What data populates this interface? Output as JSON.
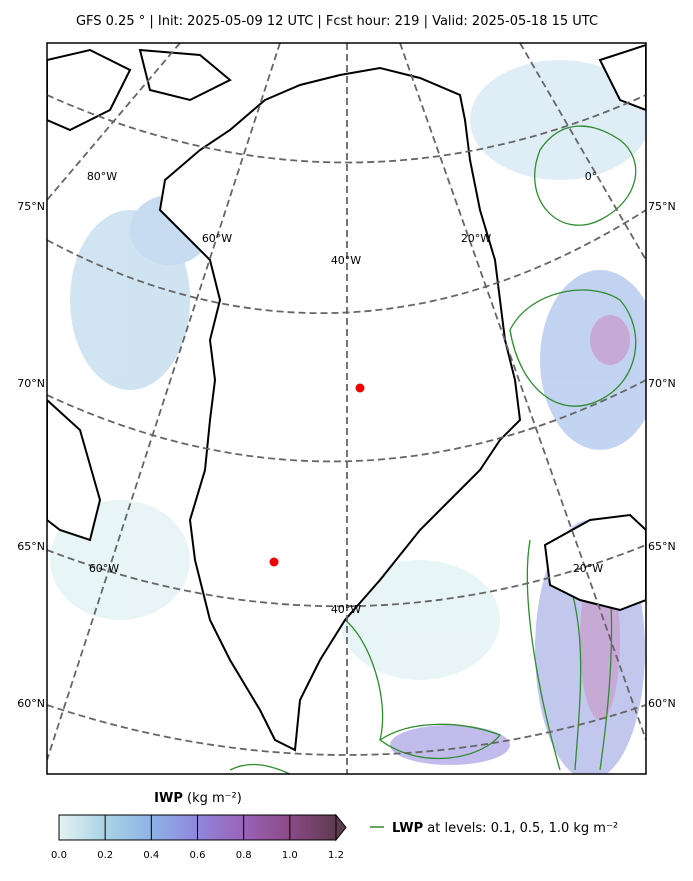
{
  "header": {
    "title": "GFS 0.25 °  |  Init: 2025-05-09 12 UTC  |  Fcst hour: 219  |  Valid: 2025-05-18 15 UTC"
  },
  "map": {
    "lat_labels_left": [
      "75°N",
      "70°N",
      "65°N",
      "60°N"
    ],
    "lat_labels_right": [
      "75°N",
      "70°N",
      "65°N",
      "60°N"
    ],
    "lon_labels": [
      "80°W",
      "0°",
      "60°W",
      "20°W",
      "40°W",
      "60°W",
      "20°W",
      "40°W"
    ]
  },
  "colorbar": {
    "label": "IWP",
    "unit": "(kg m⁻²)",
    "ticks": [
      {
        "value": 0,
        "label": "0.0"
      },
      0.2,
      0.4,
      0.6,
      0.8,
      {
        "value": 1,
        "label": "1.0"
      },
      1.2
    ],
    "colors": [
      "#e4f2f2",
      "#a9d3e6",
      "#8fb3e6",
      "#8f86dc",
      "#9a63b6",
      "#8a4a86",
      "#5e3a50"
    ]
  },
  "legend": {
    "name": "LWP",
    "text": "at levels: 0.1, 0.5, 1.0  kg m⁻²",
    "color": "#2e8b2e"
  }
}
